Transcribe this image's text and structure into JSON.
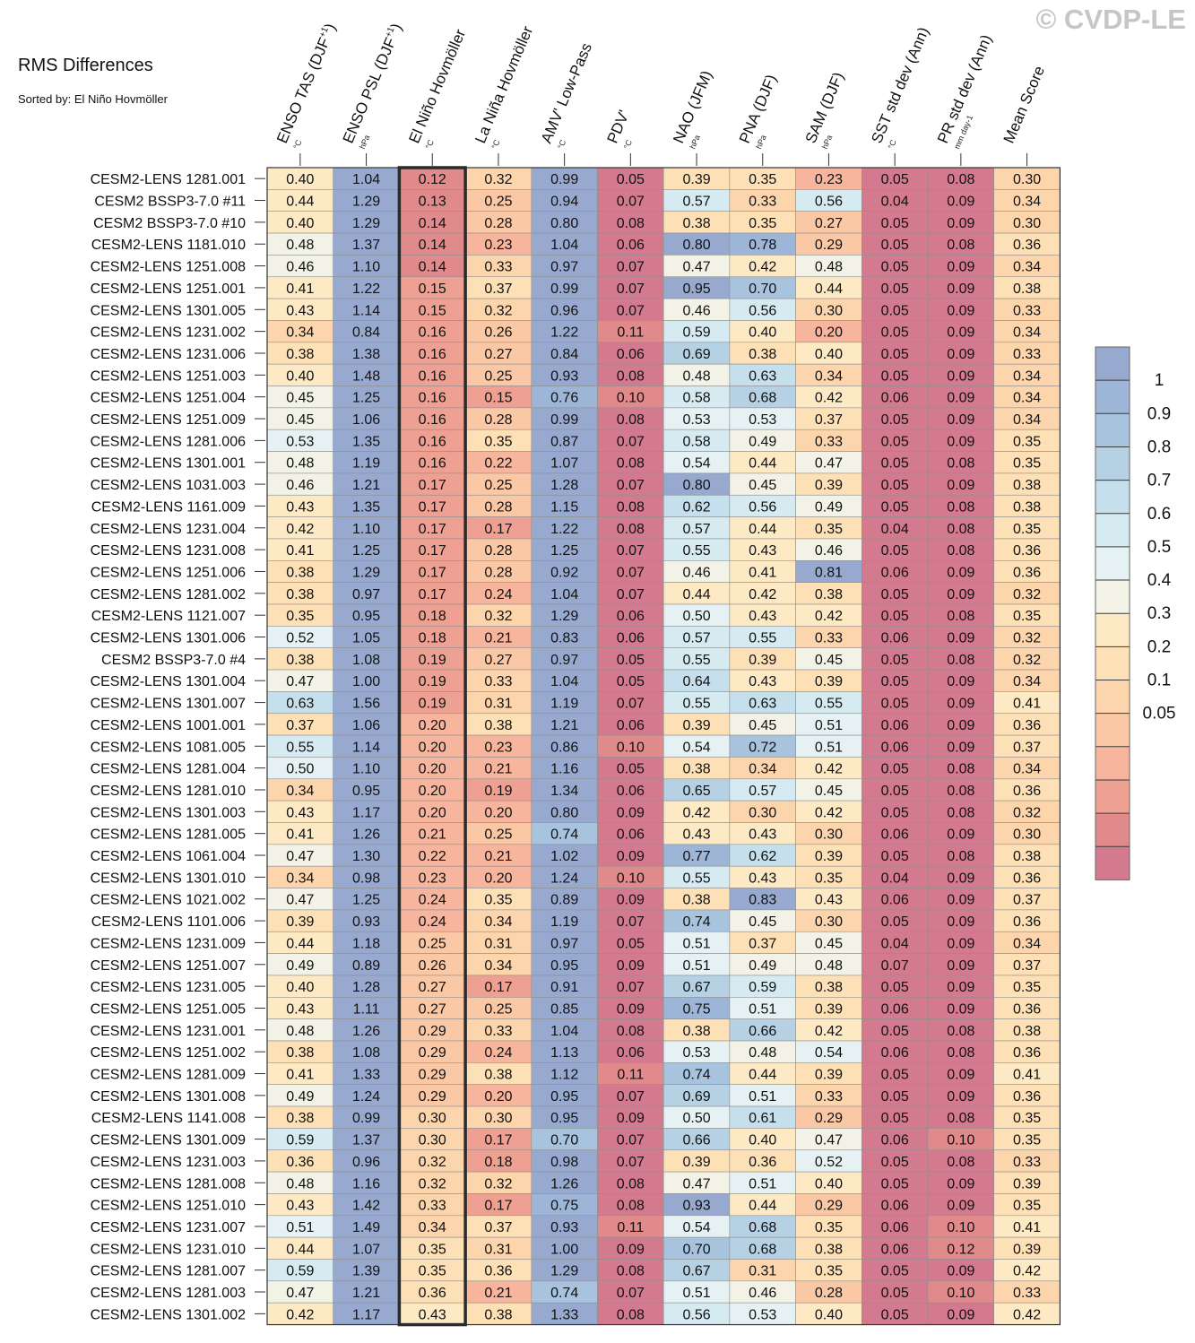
{
  "watermark": "© CVDP-LE",
  "title": "RMS Differences",
  "subtitle": "Sorted by: El Niño Hovmöller",
  "chart_data": {
    "type": "heatmap",
    "highlighted_column": "El Niño Hovmöller",
    "columns": [
      {
        "label": "ENSO TAS (DJF+1)",
        "main": "ENSO TAS (DJF",
        "sup": "+1",
        "close": ")",
        "unit": "°C"
      },
      {
        "label": "ENSO PSL (DJF+1)",
        "main": "ENSO PSL (DJF",
        "sup": "+1",
        "close": ")",
        "unit": "hPa"
      },
      {
        "label": "El Niño Hovmöller",
        "main": "El Niño Hovmöller",
        "sup": "",
        "close": "",
        "unit": "°C"
      },
      {
        "label": "La Niña Hovmöller",
        "main": "La Niña Hovmöller",
        "sup": "",
        "close": "",
        "unit": "°C"
      },
      {
        "label": "AMV' Low-Pass",
        "main": "AMV' Low-Pass",
        "sup": "",
        "close": "",
        "unit": "°C"
      },
      {
        "label": "PDV'",
        "main": "PDV'",
        "sup": "",
        "close": "",
        "unit": "°C"
      },
      {
        "label": "NAO (JFM)",
        "main": "NAO (JFM)",
        "sup": "",
        "close": "",
        "unit": "hPa"
      },
      {
        "label": "PNA (DJF)",
        "main": "PNA (DJF)",
        "sup": "",
        "close": "",
        "unit": "hPa"
      },
      {
        "label": "SAM (DJF)",
        "main": "SAM (DJF)",
        "sup": "",
        "close": "",
        "unit": "hPa"
      },
      {
        "label": "SST std dev (Ann)",
        "main": "SST std dev (Ann)",
        "sup": "",
        "close": "",
        "unit": "°C"
      },
      {
        "label": "PR std dev (Ann)",
        "main": "PR std dev (Ann)",
        "sup": "",
        "close": "",
        "unit": "mm day-1"
      },
      {
        "label": "Mean Score",
        "main": "Mean Score",
        "sup": "",
        "close": "",
        "unit": ""
      }
    ],
    "rows": [
      {
        "name": "CESM2-LENS 1281.001",
        "values": [
          0.4,
          1.04,
          0.12,
          0.32,
          0.99,
          0.05,
          0.39,
          0.35,
          0.23,
          0.05,
          0.08,
          0.3
        ]
      },
      {
        "name": "CESM2 BSSP3-7.0 #11",
        "values": [
          0.44,
          1.29,
          0.13,
          0.25,
          0.94,
          0.07,
          0.57,
          0.33,
          0.56,
          0.04,
          0.09,
          0.34
        ]
      },
      {
        "name": "CESM2 BSSP3-7.0 #10",
        "values": [
          0.4,
          1.29,
          0.14,
          0.28,
          0.8,
          0.08,
          0.38,
          0.35,
          0.27,
          0.05,
          0.09,
          0.3
        ]
      },
      {
        "name": "CESM2-LENS 1181.010",
        "values": [
          0.48,
          1.37,
          0.14,
          0.23,
          1.04,
          0.06,
          0.8,
          0.78,
          0.29,
          0.05,
          0.08,
          0.36
        ]
      },
      {
        "name": "CESM2-LENS 1251.008",
        "values": [
          0.46,
          1.1,
          0.14,
          0.33,
          0.97,
          0.07,
          0.47,
          0.42,
          0.48,
          0.05,
          0.09,
          0.34
        ]
      },
      {
        "name": "CESM2-LENS 1251.001",
        "values": [
          0.41,
          1.22,
          0.15,
          0.37,
          0.99,
          0.07,
          0.95,
          0.7,
          0.44,
          0.05,
          0.09,
          0.38
        ]
      },
      {
        "name": "CESM2-LENS 1301.005",
        "values": [
          0.43,
          1.14,
          0.15,
          0.32,
          0.96,
          0.07,
          0.46,
          0.56,
          0.3,
          0.05,
          0.09,
          0.33
        ]
      },
      {
        "name": "CESM2-LENS 1231.002",
        "values": [
          0.34,
          0.84,
          0.16,
          0.26,
          1.22,
          0.11,
          0.59,
          0.4,
          0.2,
          0.05,
          0.09,
          0.34
        ]
      },
      {
        "name": "CESM2-LENS 1231.006",
        "values": [
          0.38,
          1.38,
          0.16,
          0.27,
          0.84,
          0.06,
          0.69,
          0.38,
          0.4,
          0.05,
          0.09,
          0.33
        ]
      },
      {
        "name": "CESM2-LENS 1251.003",
        "values": [
          0.4,
          1.48,
          0.16,
          0.25,
          0.93,
          0.08,
          0.48,
          0.63,
          0.34,
          0.05,
          0.09,
          0.34
        ]
      },
      {
        "name": "CESM2-LENS 1251.004",
        "values": [
          0.45,
          1.25,
          0.16,
          0.15,
          0.76,
          0.1,
          0.58,
          0.68,
          0.42,
          0.06,
          0.09,
          0.34
        ]
      },
      {
        "name": "CESM2-LENS 1251.009",
        "values": [
          0.45,
          1.06,
          0.16,
          0.28,
          0.99,
          0.08,
          0.53,
          0.53,
          0.37,
          0.05,
          0.09,
          0.34
        ]
      },
      {
        "name": "CESM2-LENS 1281.006",
        "values": [
          0.53,
          1.35,
          0.16,
          0.35,
          0.87,
          0.07,
          0.58,
          0.49,
          0.33,
          0.05,
          0.09,
          0.35
        ]
      },
      {
        "name": "CESM2-LENS 1301.001",
        "values": [
          0.48,
          1.19,
          0.16,
          0.22,
          1.07,
          0.08,
          0.54,
          0.44,
          0.47,
          0.05,
          0.08,
          0.35
        ]
      },
      {
        "name": "CESM2-LENS 1031.003",
        "values": [
          0.46,
          1.21,
          0.17,
          0.25,
          1.28,
          0.07,
          0.8,
          0.45,
          0.39,
          0.05,
          0.09,
          0.38
        ]
      },
      {
        "name": "CESM2-LENS 1161.009",
        "values": [
          0.43,
          1.35,
          0.17,
          0.28,
          1.15,
          0.08,
          0.62,
          0.56,
          0.49,
          0.05,
          0.08,
          0.38
        ]
      },
      {
        "name": "CESM2-LENS 1231.004",
        "values": [
          0.42,
          1.1,
          0.17,
          0.17,
          1.22,
          0.08,
          0.57,
          0.44,
          0.35,
          0.04,
          0.08,
          0.35
        ]
      },
      {
        "name": "CESM2-LENS 1231.008",
        "values": [
          0.41,
          1.25,
          0.17,
          0.28,
          1.25,
          0.07,
          0.55,
          0.43,
          0.46,
          0.05,
          0.08,
          0.36
        ]
      },
      {
        "name": "CESM2-LENS 1251.006",
        "values": [
          0.38,
          1.29,
          0.17,
          0.28,
          0.92,
          0.07,
          0.46,
          0.41,
          0.81,
          0.06,
          0.09,
          0.36
        ]
      },
      {
        "name": "CESM2-LENS 1281.002",
        "values": [
          0.38,
          0.97,
          0.17,
          0.24,
          1.04,
          0.07,
          0.44,
          0.42,
          0.38,
          0.05,
          0.09,
          0.32
        ]
      },
      {
        "name": "CESM2-LENS 1121.007",
        "values": [
          0.35,
          0.95,
          0.18,
          0.32,
          1.29,
          0.06,
          0.5,
          0.43,
          0.42,
          0.05,
          0.08,
          0.35
        ]
      },
      {
        "name": "CESM2-LENS 1301.006",
        "values": [
          0.52,
          1.05,
          0.18,
          0.21,
          0.83,
          0.06,
          0.57,
          0.55,
          0.33,
          0.06,
          0.09,
          0.32
        ]
      },
      {
        "name": "CESM2 BSSP3-7.0 #4",
        "values": [
          0.38,
          1.08,
          0.19,
          0.27,
          0.97,
          0.05,
          0.55,
          0.39,
          0.45,
          0.05,
          0.08,
          0.32
        ]
      },
      {
        "name": "CESM2-LENS 1301.004",
        "values": [
          0.47,
          1.0,
          0.19,
          0.33,
          1.04,
          0.05,
          0.64,
          0.43,
          0.39,
          0.05,
          0.09,
          0.34
        ]
      },
      {
        "name": "CESM2-LENS 1301.007",
        "values": [
          0.63,
          1.56,
          0.19,
          0.31,
          1.19,
          0.07,
          0.55,
          0.63,
          0.55,
          0.05,
          0.09,
          0.41
        ]
      },
      {
        "name": "CESM2-LENS 1001.001",
        "values": [
          0.37,
          1.06,
          0.2,
          0.38,
          1.21,
          0.06,
          0.39,
          0.45,
          0.51,
          0.06,
          0.09,
          0.36
        ]
      },
      {
        "name": "CESM2-LENS 1081.005",
        "values": [
          0.55,
          1.14,
          0.2,
          0.23,
          0.86,
          0.1,
          0.54,
          0.72,
          0.51,
          0.06,
          0.09,
          0.37
        ]
      },
      {
        "name": "CESM2-LENS 1281.004",
        "values": [
          0.5,
          1.1,
          0.2,
          0.21,
          1.16,
          0.05,
          0.38,
          0.34,
          0.42,
          0.05,
          0.08,
          0.34
        ]
      },
      {
        "name": "CESM2-LENS 1281.010",
        "values": [
          0.34,
          0.95,
          0.2,
          0.19,
          1.34,
          0.06,
          0.65,
          0.57,
          0.45,
          0.05,
          0.08,
          0.36
        ]
      },
      {
        "name": "CESM2-LENS 1301.003",
        "values": [
          0.43,
          1.17,
          0.2,
          0.2,
          0.8,
          0.09,
          0.42,
          0.3,
          0.42,
          0.05,
          0.08,
          0.32
        ]
      },
      {
        "name": "CESM2-LENS 1281.005",
        "values": [
          0.41,
          1.26,
          0.21,
          0.25,
          0.74,
          0.06,
          0.43,
          0.43,
          0.3,
          0.06,
          0.09,
          0.3
        ]
      },
      {
        "name": "CESM2-LENS 1061.004",
        "values": [
          0.47,
          1.3,
          0.22,
          0.21,
          1.02,
          0.09,
          0.77,
          0.62,
          0.39,
          0.05,
          0.08,
          0.38
        ]
      },
      {
        "name": "CESM2-LENS 1301.010",
        "values": [
          0.34,
          0.98,
          0.23,
          0.2,
          1.24,
          0.1,
          0.55,
          0.43,
          0.35,
          0.04,
          0.09,
          0.36
        ]
      },
      {
        "name": "CESM2-LENS 1021.002",
        "values": [
          0.47,
          1.25,
          0.24,
          0.35,
          0.89,
          0.09,
          0.38,
          0.83,
          0.43,
          0.06,
          0.09,
          0.37
        ]
      },
      {
        "name": "CESM2-LENS 1101.006",
        "values": [
          0.39,
          0.93,
          0.24,
          0.34,
          1.19,
          0.07,
          0.74,
          0.45,
          0.3,
          0.05,
          0.09,
          0.36
        ]
      },
      {
        "name": "CESM2-LENS 1231.009",
        "values": [
          0.44,
          1.18,
          0.25,
          0.31,
          0.97,
          0.05,
          0.51,
          0.37,
          0.45,
          0.04,
          0.09,
          0.34
        ]
      },
      {
        "name": "CESM2-LENS 1251.007",
        "values": [
          0.49,
          0.89,
          0.26,
          0.34,
          0.95,
          0.09,
          0.51,
          0.49,
          0.48,
          0.07,
          0.09,
          0.37
        ]
      },
      {
        "name": "CESM2-LENS 1231.005",
        "values": [
          0.4,
          1.28,
          0.27,
          0.17,
          0.91,
          0.07,
          0.67,
          0.59,
          0.38,
          0.05,
          0.09,
          0.35
        ]
      },
      {
        "name": "CESM2-LENS 1251.005",
        "values": [
          0.43,
          1.11,
          0.27,
          0.25,
          0.85,
          0.09,
          0.75,
          0.51,
          0.39,
          0.06,
          0.09,
          0.36
        ]
      },
      {
        "name": "CESM2-LENS 1231.001",
        "values": [
          0.48,
          1.26,
          0.29,
          0.33,
          1.04,
          0.08,
          0.38,
          0.66,
          0.42,
          0.05,
          0.08,
          0.38
        ]
      },
      {
        "name": "CESM2-LENS 1251.002",
        "values": [
          0.38,
          1.08,
          0.29,
          0.24,
          1.13,
          0.06,
          0.53,
          0.48,
          0.54,
          0.06,
          0.08,
          0.36
        ]
      },
      {
        "name": "CESM2-LENS 1281.009",
        "values": [
          0.41,
          1.33,
          0.29,
          0.38,
          1.12,
          0.11,
          0.74,
          0.44,
          0.39,
          0.05,
          0.09,
          0.41
        ]
      },
      {
        "name": "CESM2-LENS 1301.008",
        "values": [
          0.49,
          1.24,
          0.29,
          0.2,
          0.95,
          0.07,
          0.69,
          0.51,
          0.33,
          0.05,
          0.09,
          0.36
        ]
      },
      {
        "name": "CESM2-LENS 1141.008",
        "values": [
          0.38,
          0.99,
          0.3,
          0.3,
          0.95,
          0.09,
          0.5,
          0.61,
          0.29,
          0.05,
          0.08,
          0.35
        ]
      },
      {
        "name": "CESM2-LENS 1301.009",
        "values": [
          0.59,
          1.37,
          0.3,
          0.17,
          0.7,
          0.07,
          0.66,
          0.4,
          0.47,
          0.06,
          0.1,
          0.35
        ]
      },
      {
        "name": "CESM2-LENS 1231.003",
        "values": [
          0.36,
          0.96,
          0.32,
          0.18,
          0.98,
          0.07,
          0.39,
          0.36,
          0.52,
          0.05,
          0.08,
          0.33
        ]
      },
      {
        "name": "CESM2-LENS 1281.008",
        "values": [
          0.48,
          1.16,
          0.32,
          0.32,
          1.26,
          0.08,
          0.47,
          0.51,
          0.4,
          0.05,
          0.09,
          0.39
        ]
      },
      {
        "name": "CESM2-LENS 1251.010",
        "values": [
          0.43,
          1.42,
          0.33,
          0.17,
          0.75,
          0.08,
          0.93,
          0.44,
          0.29,
          0.06,
          0.09,
          0.35
        ]
      },
      {
        "name": "CESM2-LENS 1231.007",
        "values": [
          0.51,
          1.49,
          0.34,
          0.37,
          0.93,
          0.11,
          0.54,
          0.68,
          0.35,
          0.06,
          0.1,
          0.41
        ]
      },
      {
        "name": "CESM2-LENS 1231.010",
        "values": [
          0.44,
          1.07,
          0.35,
          0.31,
          1.0,
          0.09,
          0.7,
          0.68,
          0.38,
          0.06,
          0.12,
          0.39
        ]
      },
      {
        "name": "CESM2-LENS 1281.007",
        "values": [
          0.59,
          1.39,
          0.35,
          0.36,
          1.29,
          0.08,
          0.67,
          0.31,
          0.35,
          0.05,
          0.09,
          0.42
        ]
      },
      {
        "name": "CESM2-LENS 1281.003",
        "values": [
          0.47,
          1.21,
          0.36,
          0.21,
          0.74,
          0.07,
          0.51,
          0.46,
          0.28,
          0.05,
          0.1,
          0.33
        ]
      },
      {
        "name": "CESM2-LENS 1301.002",
        "values": [
          0.42,
          1.17,
          0.43,
          0.38,
          1.33,
          0.08,
          0.56,
          0.53,
          0.4,
          0.05,
          0.09,
          0.42
        ]
      }
    ],
    "colorbar": {
      "levels": [
        0.05,
        0.1,
        0.15,
        0.2,
        0.25,
        0.3,
        0.35,
        0.4,
        0.45,
        0.5,
        0.55,
        0.6,
        0.65,
        0.7,
        0.75,
        0.8,
        0.85,
        0.9,
        0.95,
        1
      ],
      "colors": [
        "#d47a8e",
        "#e08a8c",
        "#eea092",
        "#f6b59c",
        "#fbc8a6",
        "#fdd5ad",
        "#fde0b5",
        "#fdeac5",
        "#f3f2e6",
        "#e6f1f3",
        "#d5eaf1",
        "#c5dfec",
        "#b6d0e4",
        "#a8c3de",
        "#9db5d7",
        "#98a9d0"
      ],
      "tick_labels": [
        "1",
        "0.9",
        "0.8",
        "0.7",
        "0.6",
        "0.5",
        "0.4",
        "0.3",
        "0.2",
        "0.1",
        "0.05"
      ]
    }
  }
}
